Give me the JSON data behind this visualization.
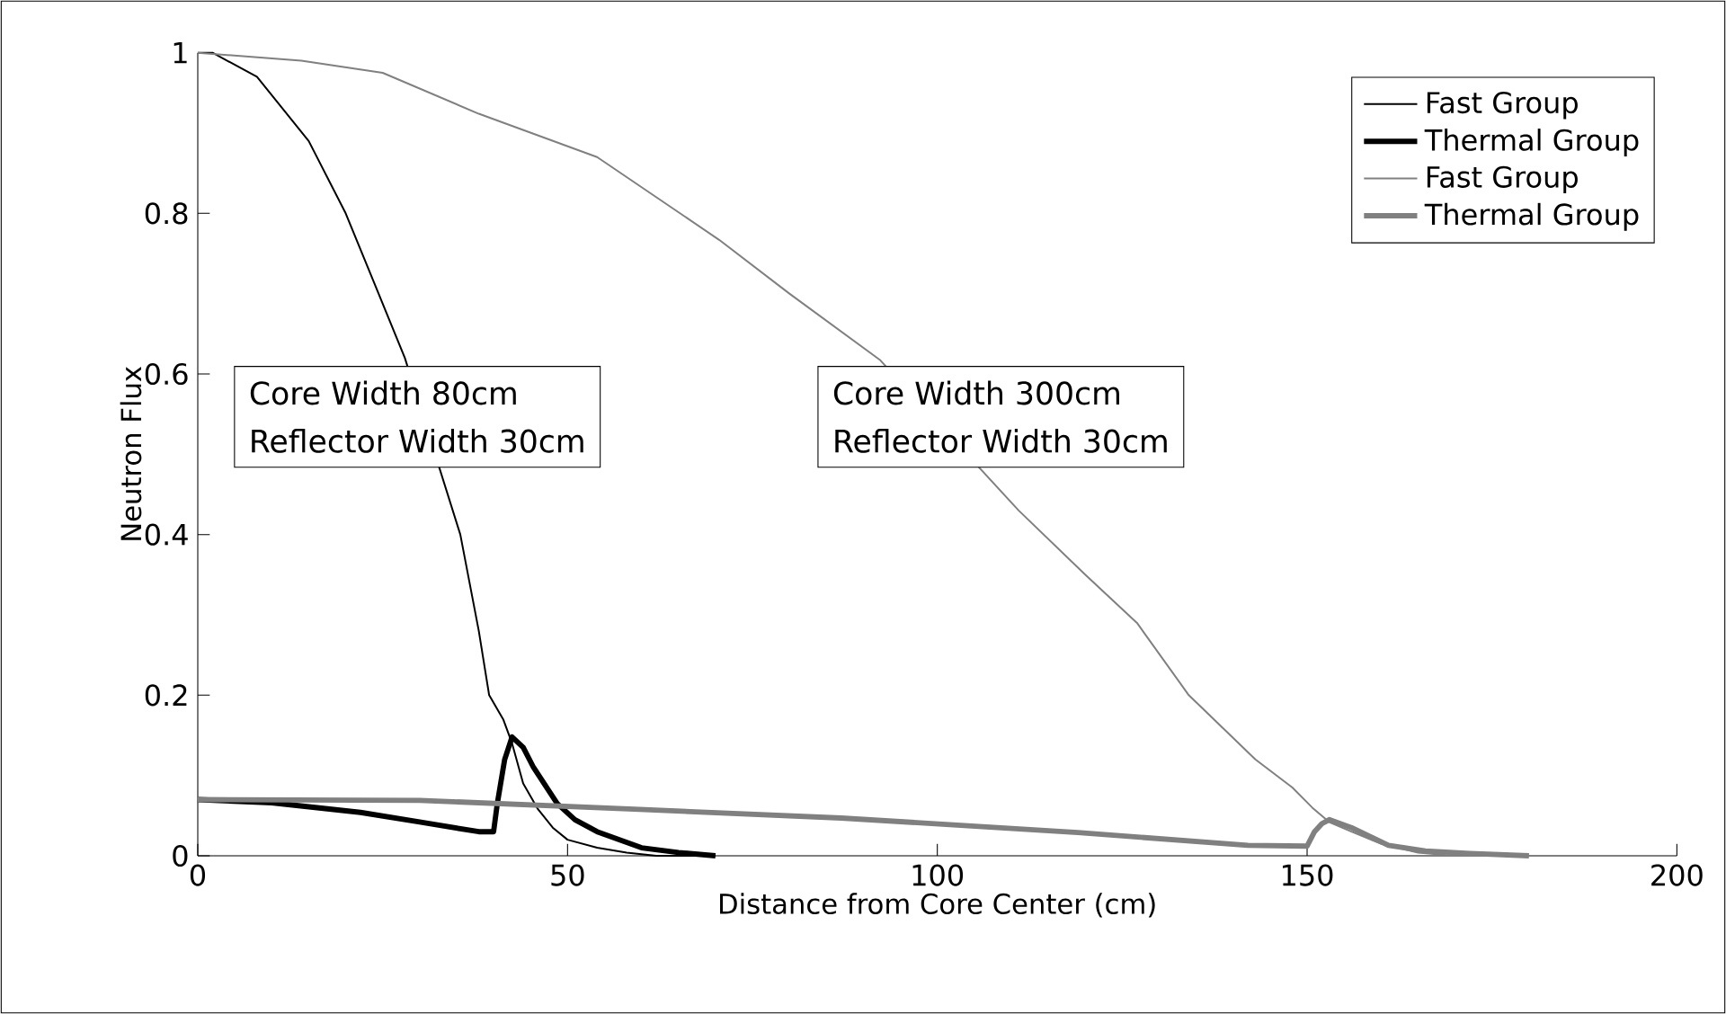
{
  "chart_data": {
    "type": "line",
    "xlabel": "Distance from Core Center (cm)",
    "ylabel": "Neutron Flux",
    "xlim": [
      0,
      200
    ],
    "ylim": [
      0,
      1
    ],
    "xticks": [
      0,
      50,
      100,
      150,
      200
    ],
    "yticks": [
      0,
      0.2,
      0.4,
      0.6,
      0.8,
      1
    ],
    "legend": "top right",
    "grid": false,
    "marker": "none",
    "line_style": "solid",
    "annotations": [
      "Core Width 80cm",
      "Reflector Width 30cm",
      "Core Width 300cm",
      "Reflector Width 30cm"
    ],
    "series": [
      {
        "name": "Fast Group",
        "color": "#000000",
        "x": [
          0,
          2,
          8,
          15,
          20,
          24,
          28,
          35.5,
          38,
          39.4,
          41.3,
          42.5,
          44,
          46,
          48,
          50,
          54,
          58,
          62,
          70
        ],
        "values": [
          1,
          1,
          0.97,
          0.89,
          0.8,
          0.71,
          0.62,
          0.4,
          0.28,
          0.2,
          0.17,
          0.14,
          0.09,
          0.058,
          0.035,
          0.02,
          0.01,
          0.004,
          0,
          0
        ]
      },
      {
        "name": "Thermal Group",
        "color": "#000000",
        "x": [
          0,
          10,
          22,
          30,
          38,
          40,
          40.5,
          41.5,
          42.5,
          44,
          45.4,
          48.6,
          51,
          54,
          60,
          65,
          70
        ],
        "values": [
          0.07,
          0.066,
          0.054,
          0.042,
          0.03,
          0.03,
          0.065,
          0.12,
          0.148,
          0.135,
          0.11,
          0.065,
          0.045,
          0.03,
          0.01,
          0.004,
          0
        ]
      },
      {
        "name": "Fast Group",
        "color": "#808080",
        "x": [
          0,
          14,
          25,
          38,
          54,
          70.5,
          80,
          92.3,
          111,
          120,
          127,
          134,
          143,
          148,
          150.7,
          153,
          156,
          160,
          165,
          170
        ],
        "values": [
          1,
          0.99,
          0.975,
          0.924,
          0.87,
          0.767,
          0.7,
          0.617,
          0.43,
          0.35,
          0.29,
          0.2,
          0.12,
          0.085,
          0.06,
          0.042,
          0.03,
          0.015,
          0.004,
          0
        ]
      },
      {
        "name": "Thermal Group",
        "color": "#808080",
        "x": [
          0,
          30,
          59,
          87,
          119,
          142,
          150,
          151,
          152,
          153,
          156,
          161,
          166,
          172,
          180
        ],
        "values": [
          0.07,
          0.069,
          0.058,
          0.047,
          0.029,
          0.013,
          0.012,
          0.03,
          0.04,
          0.045,
          0.035,
          0.013,
          0.006,
          0.003,
          0
        ]
      }
    ]
  }
}
